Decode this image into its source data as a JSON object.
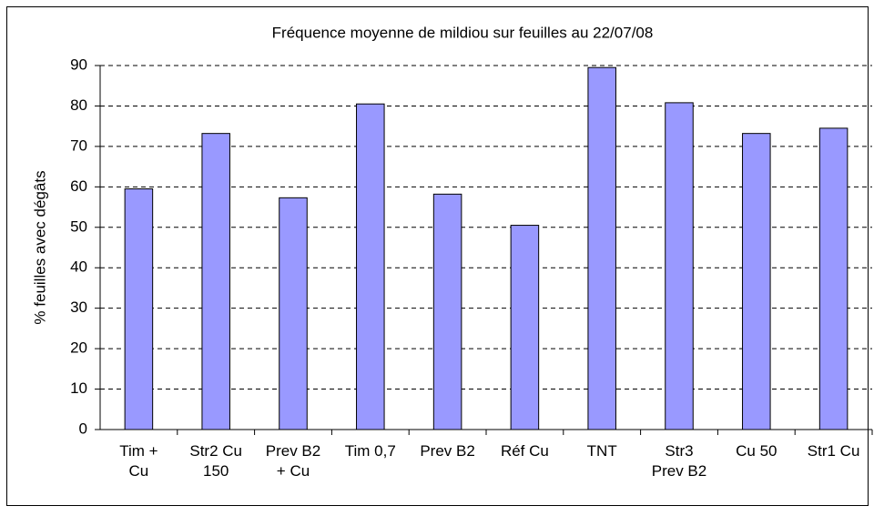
{
  "chart_data": {
    "type": "bar",
    "title": "Fréquence moyenne de mildiou sur feuilles au 22/07/08",
    "y_label": "% feuilles avec dégâts",
    "categories": [
      "Tim +\nCu",
      "Str2 Cu\n150",
      "Prev B2\n+ Cu",
      "Tim 0,7",
      "Prev B2",
      "Réf Cu",
      "TNT",
      "Str3\nPrev B2",
      "Cu 50",
      "Str1 Cu"
    ],
    "values": [
      59.5,
      73.2,
      57.3,
      80.5,
      58.2,
      50.5,
      89.5,
      80.8,
      73.2,
      74.5
    ],
    "color": "#9999ff",
    "ylim": [
      0,
      90
    ],
    "yticks": [
      0,
      10,
      20,
      30,
      40,
      50,
      60,
      70,
      80,
      90
    ],
    "grid": true
  }
}
